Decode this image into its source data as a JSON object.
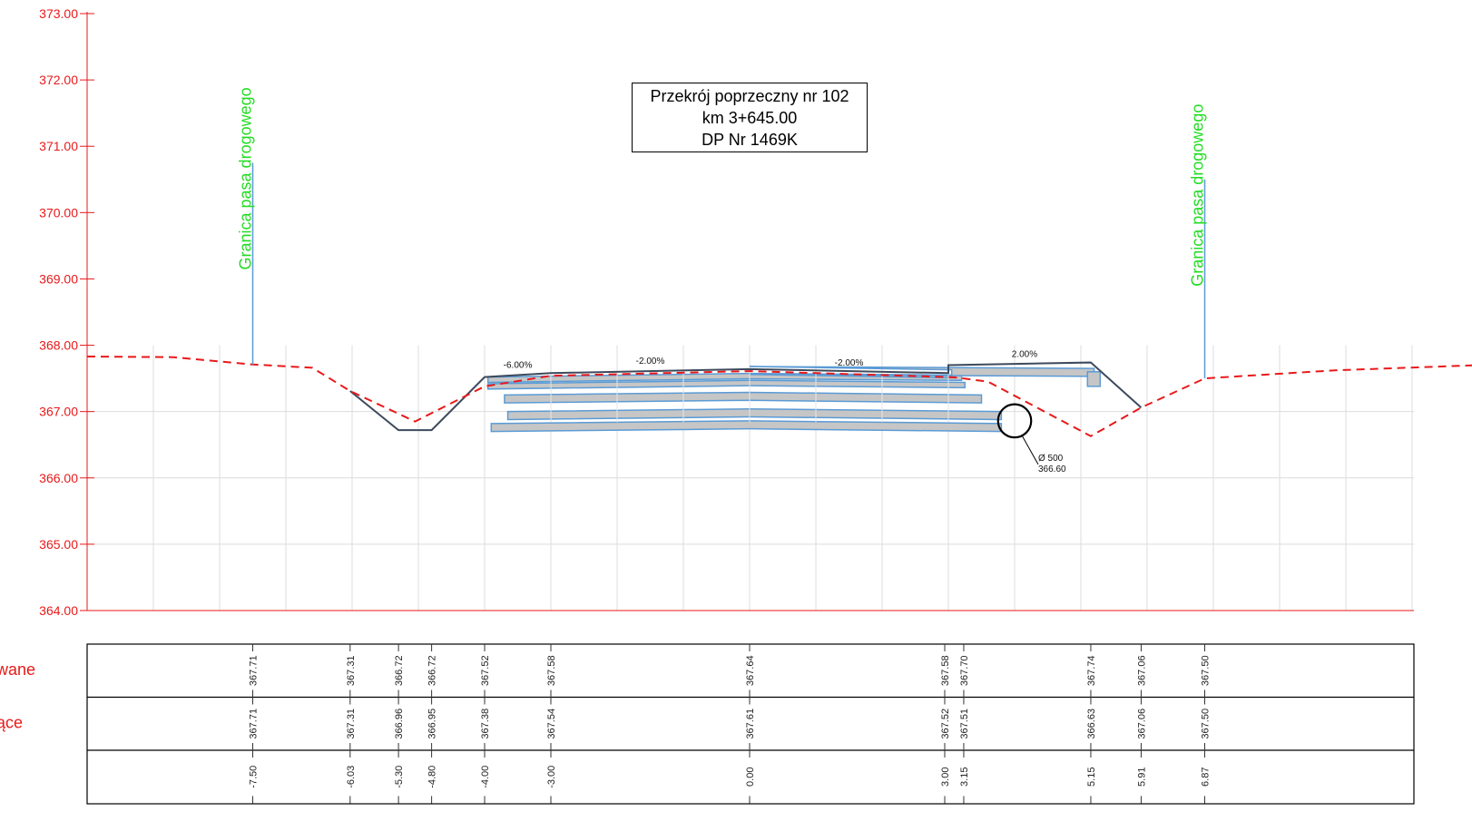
{
  "title": {
    "line1": "Przekrój poprzeczny nr 102",
    "line2": "km 3+645.00",
    "line3": "DP Nr 1469K"
  },
  "boundary_label": "Granica pasa drogowego",
  "pipe": {
    "diameter_label": "Ø 500",
    "elevation_label": "366.60"
  },
  "colors": {
    "axis": "#e8191a",
    "existing_terrain": "#e8191a",
    "design_line": "#3d4a5c",
    "layers_fill": "#c6c6c6",
    "layers_stroke": "#5b9bd5",
    "boundary_text": "#22dd22",
    "boundary_line": "#5b9bd5",
    "grid": "#dcdcdc"
  },
  "chart_data": {
    "type": "cross-section",
    "x_range_m": [
      -10.0,
      11.0
    ],
    "y_range_m": [
      364.0,
      373.0
    ],
    "y_ticks": [
      "373.00",
      "372.00",
      "371.00",
      "370.00",
      "369.00",
      "368.00",
      "367.00",
      "366.00",
      "365.00",
      "364.00"
    ],
    "existing_terrain": [
      {
        "x": -10.0,
        "y": 367.83
      },
      {
        "x": -8.7,
        "y": 367.82
      },
      {
        "x": -7.5,
        "y": 367.71
      },
      {
        "x": -6.6,
        "y": 367.66
      },
      {
        "x": -6.03,
        "y": 367.31
      },
      {
        "x": -5.05,
        "y": 366.85
      },
      {
        "x": -4.0,
        "y": 367.38
      },
      {
        "x": -3.0,
        "y": 367.54
      },
      {
        "x": 0.0,
        "y": 367.61
      },
      {
        "x": 3.0,
        "y": 367.52
      },
      {
        "x": 3.15,
        "y": 367.51
      },
      {
        "x": 3.6,
        "y": 367.45
      },
      {
        "x": 5.15,
        "y": 366.63
      },
      {
        "x": 5.91,
        "y": 367.06
      },
      {
        "x": 6.87,
        "y": 367.5
      },
      {
        "x": 8.8,
        "y": 367.62
      },
      {
        "x": 11.0,
        "y": 367.7
      }
    ],
    "design_profile": [
      {
        "x": -6.03,
        "y": 367.31
      },
      {
        "x": -5.3,
        "y": 366.72
      },
      {
        "x": -4.8,
        "y": 366.72
      },
      {
        "x": -4.0,
        "y": 367.52
      },
      {
        "x": -3.0,
        "y": 367.58
      },
      {
        "x": 0.0,
        "y": 367.64
      },
      {
        "x": 3.0,
        "y": 367.58
      },
      {
        "x": 3.0,
        "y": 367.7
      },
      {
        "x": 5.15,
        "y": 367.74
      },
      {
        "x": 5.91,
        "y": 367.06
      }
    ],
    "slopes": [
      {
        "label": "-6.00%",
        "x": -3.5,
        "y": 367.66
      },
      {
        "label": "-2.00%",
        "x": -1.5,
        "y": 367.72
      },
      {
        "label": "-2.00%",
        "x": 1.5,
        "y": 367.69
      },
      {
        "label": "2.00%",
        "x": 4.15,
        "y": 367.82
      }
    ],
    "boundaries": [
      {
        "x": -7.5,
        "y_top": 370.75,
        "y_bottom": 367.71
      },
      {
        "x": 6.87,
        "y_top": 370.5,
        "y_bottom": 367.5
      }
    ],
    "pipe": {
      "x": 4.0,
      "y": 366.86,
      "radius_m": 0.25
    },
    "table": {
      "rows": [
        {
          "label": "wane",
          "values": [
            "367.71",
            "367.31",
            "366.72",
            "366.72",
            "367.52",
            "367.58",
            "367.64",
            "367.58",
            "367.70",
            "367.74",
            "367.06",
            "367.50"
          ]
        },
        {
          "label": "ące",
          "values": [
            "367.71",
            "367.31",
            "366.96",
            "366.95",
            "367.38",
            "367.54",
            "367.61",
            "367.52",
            "367.51",
            "366.63",
            "367.06",
            "367.50"
          ]
        },
        {
          "label": "",
          "values": [
            "-7.50",
            "-6.03",
            "-5.30",
            "-4.80",
            "-4.00",
            "-3.00",
            "0.00",
            "3.00",
            "3.15",
            "5.15",
            "5.91",
            "6.87"
          ]
        }
      ],
      "x_positions": [
        -7.5,
        -6.03,
        -5.3,
        -4.8,
        -4.0,
        -3.0,
        0.0,
        3.0,
        3.15,
        5.15,
        5.91,
        6.87
      ]
    }
  }
}
